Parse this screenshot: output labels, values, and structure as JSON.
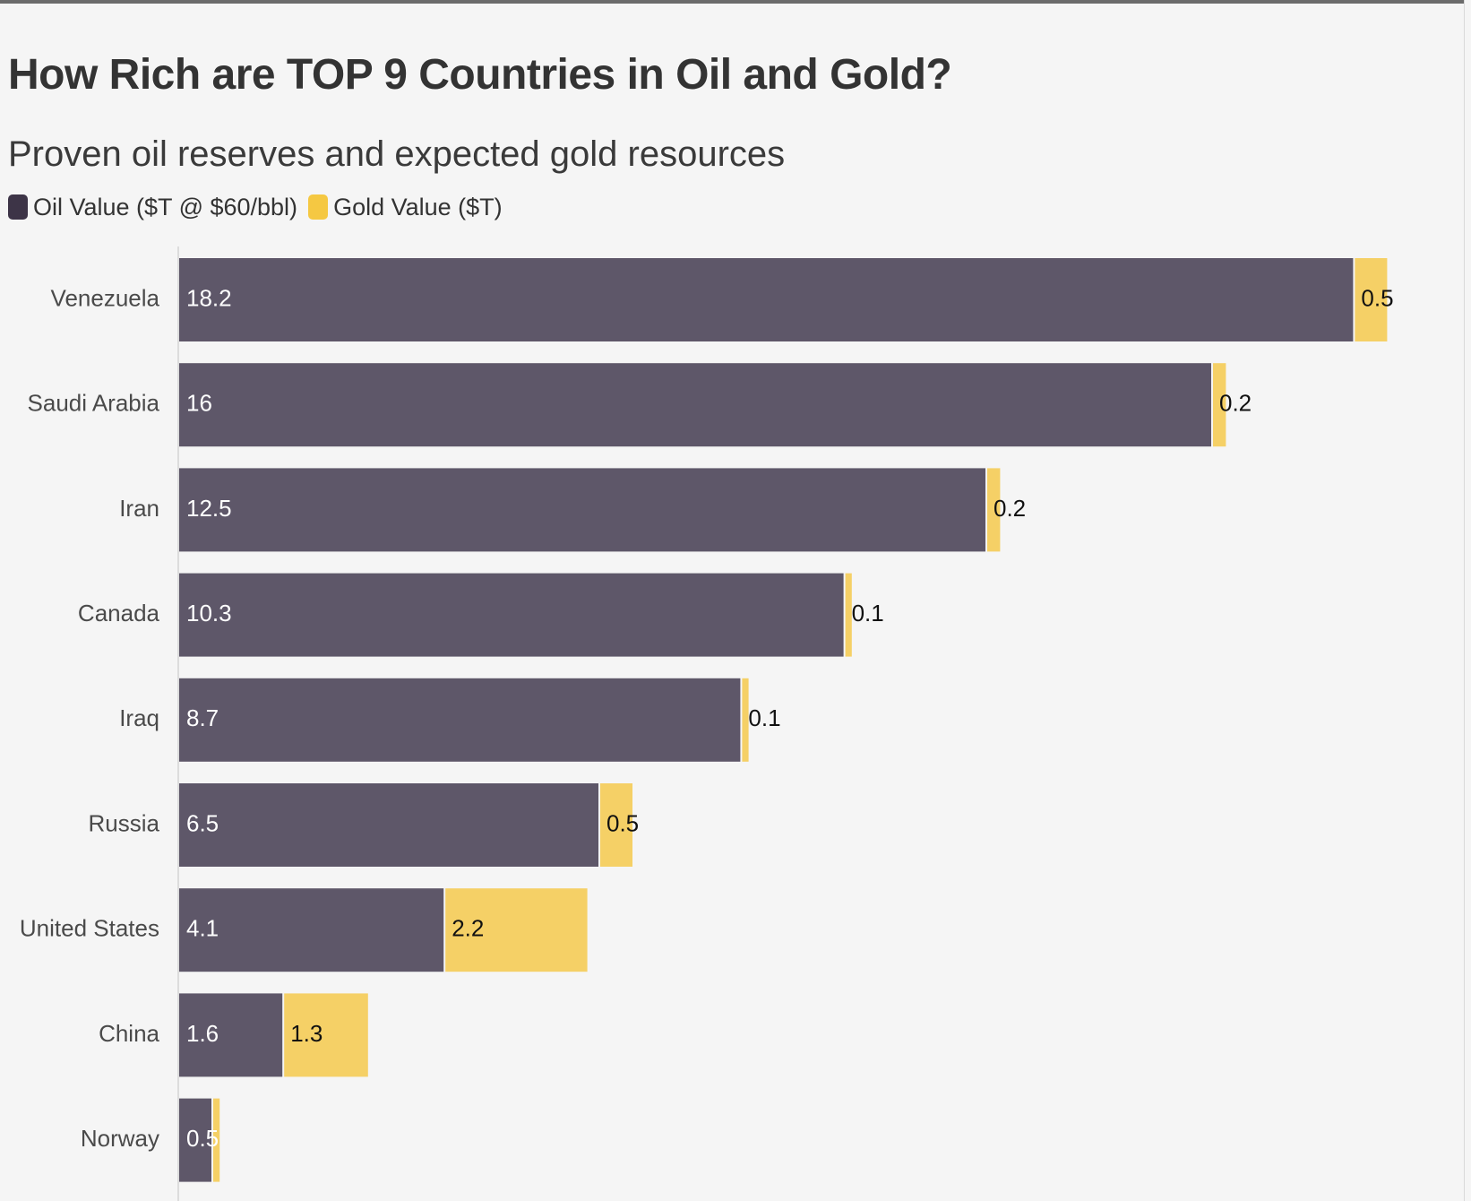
{
  "title": "How Rich are TOP 9 Countries in Oil and Gold?",
  "subtitle": "Proven oil reserves and expected gold resources",
  "legend": [
    {
      "label": "Oil Value ($T @ $60/bbl)",
      "color": "#3d3447"
    },
    {
      "label": "Gold Value ($T)",
      "color": "#f5c842"
    }
  ],
  "chart_data": {
    "type": "bar",
    "orientation": "horizontal",
    "stacked": true,
    "title": "How Rich are TOP 9 Countries in Oil and Gold?",
    "subtitle": "Proven oil reserves and expected gold resources",
    "categories": [
      "Venezuela",
      "Saudi Arabia",
      "Iran",
      "Canada",
      "Iraq",
      "Russia",
      "United States",
      "China",
      "Norway"
    ],
    "series": [
      {
        "name": "Oil Value ($T @ $60/bbl)",
        "color": "#5e5769",
        "values": [
          18.2,
          16,
          12.5,
          10.3,
          8.7,
          6.5,
          4.1,
          1.6,
          0.5
        ]
      },
      {
        "name": "Gold Value ($T)",
        "color": "#f5d066",
        "values": [
          0.5,
          0.2,
          0.2,
          0.1,
          0.1,
          0.5,
          2.2,
          1.3,
          0.1
        ]
      }
    ],
    "data_labels": {
      "oil": [
        "18.2",
        "16",
        "12.5",
        "10.3",
        "8.7",
        "6.5",
        "4.1",
        "1.6",
        "0.5"
      ],
      "gold": [
        "0.5",
        "0.2",
        "0.2",
        "0.1",
        "0.1",
        "0.5",
        "2.2",
        "1.3",
        ""
      ]
    },
    "xlim": [
      0,
      19
    ],
    "xlabel": "",
    "ylabel": "",
    "grid": false,
    "legend_position": "top-left"
  }
}
